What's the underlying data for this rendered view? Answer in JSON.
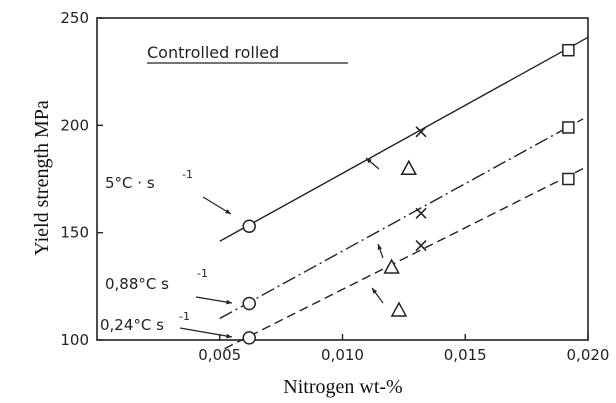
{
  "chart_data": {
    "type": "line",
    "title": "Controlled rolled",
    "xlabel": "Nitrogen wt-%",
    "ylabel": "Yield strength MPa",
    "xlim": [
      0.0,
      0.02
    ],
    "ylim": [
      100,
      250
    ],
    "x_ticks": [
      "0,005",
      "0,010",
      "0,015",
      "0,020"
    ],
    "y_ticks": [
      "100",
      "150",
      "200",
      "250"
    ],
    "grid": false,
    "series": [
      {
        "name": "5°C · s",
        "name_superscript": "-1",
        "line_style": "solid",
        "line": {
          "x": [
            0.005,
            0.02
          ],
          "y": [
            146,
            241
          ]
        },
        "points": [
          {
            "x": 0.0062,
            "y": 153,
            "marker": "circle"
          },
          {
            "x": 0.0132,
            "y": 197,
            "marker": "cross"
          },
          {
            "x": 0.0192,
            "y": 235,
            "marker": "square"
          }
        ]
      },
      {
        "name": "0,88°C s",
        "name_superscript": "-1",
        "line_style": "dashdot",
        "line": {
          "x": [
            0.005,
            0.0198
          ],
          "y": [
            110,
            203
          ]
        },
        "points": [
          {
            "x": 0.0062,
            "y": 117,
            "marker": "circle"
          },
          {
            "x": 0.0132,
            "y": 159,
            "marker": "cross"
          },
          {
            "x": 0.0192,
            "y": 199,
            "marker": "square"
          }
        ]
      },
      {
        "name": "0,24°C s",
        "name_superscript": "-1",
        "line_style": "dashed",
        "line": {
          "x": [
            0.0052,
            0.02
          ],
          "y": [
            96,
            181
          ]
        },
        "points": [
          {
            "x": 0.0062,
            "y": 101,
            "marker": "circle"
          },
          {
            "x": 0.0132,
            "y": 144,
            "marker": "cross"
          },
          {
            "x": 0.0192,
            "y": 175,
            "marker": "square"
          }
        ]
      }
    ],
    "triangles": [
      {
        "x": 0.0127,
        "y": 180
      },
      {
        "x": 0.012,
        "y": 134
      },
      {
        "x": 0.0123,
        "y": 114
      }
    ]
  }
}
